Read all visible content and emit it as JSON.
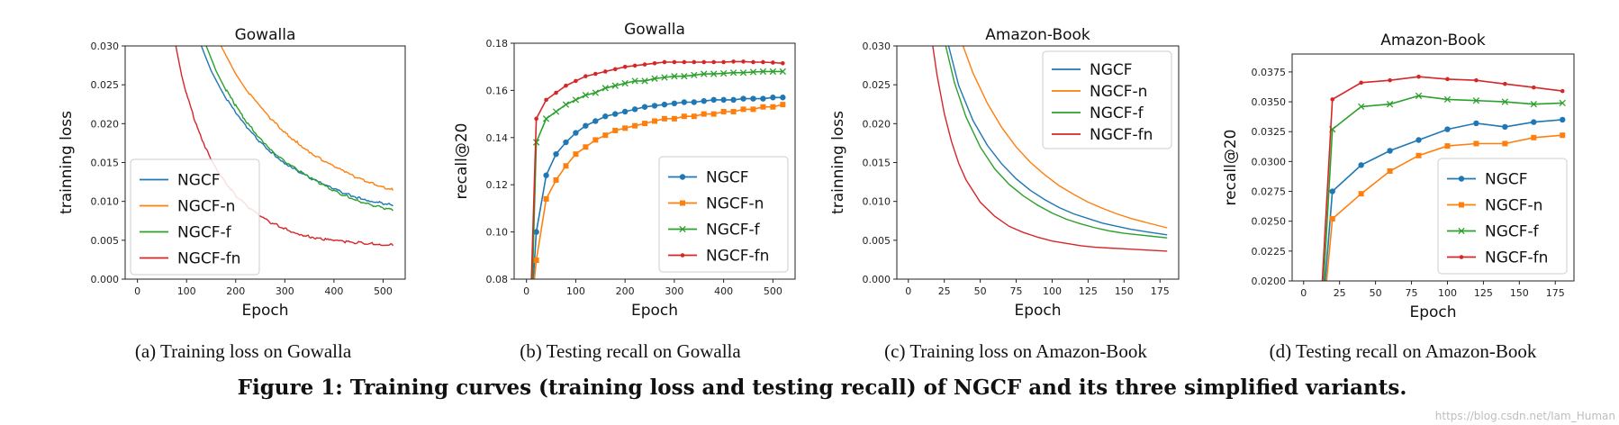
{
  "figure_caption": "Figure 1: Training curves (training loss and testing recall) of NGCF and its three simplified variants.",
  "watermark": "https://blog.csdn.net/Iam_Human",
  "colors": {
    "NGCF": "#1f77b4",
    "NGCF-n": "#ff7f0e",
    "NGCF-f": "#2ca02c",
    "NGCF-fn": "#d62728"
  },
  "chart_data": [
    {
      "type": "line",
      "title": "Gowalla",
      "caption": "(a)  Training loss on Gowalla",
      "xlabel": "Epoch",
      "ylabel": "trainning loss",
      "xlim": [
        -25,
        545
      ],
      "ylim": [
        0.0,
        0.03
      ],
      "xticks": [
        0,
        100,
        200,
        300,
        400,
        500
      ],
      "xtick_labels": [
        "0",
        "100",
        "200",
        "300",
        "400",
        "500"
      ],
      "yticks": [
        0.0,
        0.005,
        0.01,
        0.015,
        0.02,
        0.025,
        0.03
      ],
      "ytick_labels": [
        "0.000",
        "0.005",
        "0.010",
        "0.015",
        "0.020",
        "0.025",
        "0.030"
      ],
      "legend_loc": "lower-left",
      "series": [
        {
          "name": "NGCF",
          "x": [
            130,
            150,
            175,
            200,
            225,
            250,
            275,
            300,
            325,
            350,
            375,
            400,
            425,
            450,
            475,
            500,
            520
          ],
          "y": [
            0.03,
            0.0268,
            0.0238,
            0.0213,
            0.0192,
            0.0175,
            0.0161,
            0.0149,
            0.0139,
            0.013,
            0.0122,
            0.0115,
            0.0109,
            0.0104,
            0.01,
            0.0097,
            0.0094
          ]
        },
        {
          "name": "NGCF-n",
          "x": [
            170,
            200,
            225,
            250,
            275,
            300,
            325,
            350,
            375,
            400,
            425,
            450,
            475,
            500,
            520
          ],
          "y": [
            0.03,
            0.0264,
            0.024,
            0.022,
            0.0203,
            0.0188,
            0.0175,
            0.0163,
            0.0153,
            0.0144,
            0.0136,
            0.0129,
            0.0123,
            0.0118,
            0.0114
          ]
        },
        {
          "name": "NGCF-f",
          "x": [
            140,
            160,
            180,
            200,
            225,
            250,
            275,
            300,
            325,
            350,
            375,
            400,
            425,
            450,
            475,
            500,
            520
          ],
          "y": [
            0.03,
            0.0268,
            0.0243,
            0.0222,
            0.0199,
            0.018,
            0.0164,
            0.0151,
            0.014,
            0.013,
            0.0121,
            0.0113,
            0.0106,
            0.01,
            0.0095,
            0.0091,
            0.0088
          ]
        },
        {
          "name": "NGCF-fn",
          "x": [
            78,
            90,
            100,
            120,
            140,
            160,
            180,
            200,
            225,
            250,
            275,
            300,
            325,
            350,
            375,
            400,
            425,
            450,
            475,
            500,
            520
          ],
          "y": [
            0.03,
            0.0262,
            0.0237,
            0.0197,
            0.0166,
            0.0142,
            0.0123,
            0.0107,
            0.0092,
            0.008,
            0.0071,
            0.0064,
            0.0058,
            0.0054,
            0.0051,
            0.0049,
            0.0047,
            0.0046,
            0.0045,
            0.0044,
            0.0043
          ]
        }
      ]
    },
    {
      "type": "line",
      "title": "Gowalla",
      "caption": "(b)  Testing recall on Gowalla",
      "xlabel": "Epoch",
      "ylabel": "recall@20",
      "xlim": [
        -25,
        545
      ],
      "ylim": [
        0.08,
        0.18
      ],
      "xticks": [
        0,
        100,
        200,
        300,
        400,
        500
      ],
      "xtick_labels": [
        "0",
        "100",
        "200",
        "300",
        "400",
        "500"
      ],
      "yticks": [
        0.08,
        0.1,
        0.12,
        0.14,
        0.16,
        0.18
      ],
      "ytick_labels": [
        "0.08",
        "0.10",
        "0.12",
        "0.14",
        "0.16",
        "0.18"
      ],
      "legend_loc": "lower-right",
      "series": [
        {
          "name": "NGCF",
          "marker": "circle",
          "x": [
            14,
            20,
            40,
            60,
            80,
            100,
            120,
            140,
            160,
            180,
            200,
            220,
            240,
            260,
            280,
            300,
            320,
            340,
            360,
            380,
            400,
            420,
            440,
            460,
            480,
            500,
            520
          ],
          "y": [
            0.08,
            0.1,
            0.124,
            0.133,
            0.138,
            0.142,
            0.145,
            0.147,
            0.149,
            0.15,
            0.151,
            0.152,
            0.153,
            0.1535,
            0.154,
            0.1545,
            0.155,
            0.155,
            0.1555,
            0.156,
            0.156,
            0.156,
            0.1565,
            0.1565,
            0.1565,
            0.157,
            0.157
          ]
        },
        {
          "name": "NGCF-n",
          "marker": "square",
          "x": [
            16,
            20,
            40,
            60,
            80,
            100,
            120,
            140,
            160,
            180,
            200,
            220,
            240,
            260,
            280,
            300,
            320,
            340,
            360,
            380,
            400,
            420,
            440,
            460,
            480,
            500,
            520
          ],
          "y": [
            0.08,
            0.088,
            0.114,
            0.122,
            0.128,
            0.133,
            0.136,
            0.139,
            0.141,
            0.143,
            0.144,
            0.145,
            0.146,
            0.147,
            0.148,
            0.148,
            0.149,
            0.149,
            0.15,
            0.15,
            0.151,
            0.151,
            0.152,
            0.152,
            0.153,
            0.153,
            0.154
          ]
        },
        {
          "name": "NGCF-f",
          "marker": "x",
          "x": [
            12,
            20,
            40,
            60,
            80,
            100,
            120,
            140,
            160,
            180,
            200,
            220,
            240,
            260,
            280,
            300,
            320,
            340,
            360,
            380,
            400,
            420,
            440,
            460,
            480,
            500,
            520
          ],
          "y": [
            0.08,
            0.138,
            0.148,
            0.151,
            0.154,
            0.156,
            0.158,
            0.159,
            0.161,
            0.162,
            0.163,
            0.164,
            0.164,
            0.165,
            0.1655,
            0.166,
            0.166,
            0.1665,
            0.167,
            0.167,
            0.1672,
            0.1675,
            0.1675,
            0.1678,
            0.168,
            0.168,
            0.168
          ]
        },
        {
          "name": "NGCF-fn",
          "marker": "dot",
          "x": [
            10,
            20,
            40,
            60,
            80,
            100,
            120,
            140,
            160,
            180,
            200,
            220,
            240,
            260,
            280,
            300,
            320,
            340,
            360,
            380,
            400,
            420,
            440,
            460,
            480,
            500,
            520
          ],
          "y": [
            0.08,
            0.148,
            0.156,
            0.159,
            0.162,
            0.164,
            0.166,
            0.167,
            0.168,
            0.169,
            0.17,
            0.1705,
            0.171,
            0.1715,
            0.172,
            0.172,
            0.172,
            0.172,
            0.172,
            0.172,
            0.172,
            0.1722,
            0.1722,
            0.172,
            0.172,
            0.1718,
            0.1715
          ]
        }
      ]
    },
    {
      "type": "line",
      "title": "Amazon-Book",
      "caption": "(c)  Training loss on Amazon-Book",
      "xlabel": "Epoch",
      "ylabel": "trainning loss",
      "xlim": [
        -8,
        188
      ],
      "ylim": [
        0.0,
        0.03
      ],
      "xticks": [
        0,
        25,
        50,
        75,
        100,
        125,
        150,
        175
      ],
      "xtick_labels": [
        "0",
        "25",
        "50",
        "75",
        "100",
        "125",
        "150",
        "175"
      ],
      "yticks": [
        0.0,
        0.005,
        0.01,
        0.015,
        0.02,
        0.025,
        0.03
      ],
      "ytick_labels": [
        "0.000",
        "0.005",
        "0.010",
        "0.015",
        "0.020",
        "0.025",
        "0.030"
      ],
      "legend_loc": "top-right",
      "series": [
        {
          "name": "NGCF",
          "x": [
            28,
            35,
            45,
            55,
            65,
            75,
            85,
            95,
            105,
            115,
            125,
            135,
            145,
            155,
            165,
            180
          ],
          "y": [
            0.03,
            0.0249,
            0.0204,
            0.0172,
            0.0148,
            0.0129,
            0.0114,
            0.0102,
            0.0092,
            0.0084,
            0.0078,
            0.0072,
            0.0068,
            0.0064,
            0.0061,
            0.0057
          ]
        },
        {
          "name": "NGCF-n",
          "x": [
            38,
            45,
            55,
            65,
            75,
            85,
            95,
            105,
            115,
            125,
            135,
            145,
            155,
            165,
            180
          ],
          "y": [
            0.03,
            0.0265,
            0.0226,
            0.0195,
            0.017,
            0.015,
            0.0134,
            0.012,
            0.0109,
            0.0099,
            0.0091,
            0.0084,
            0.0078,
            0.0073,
            0.0066
          ]
        },
        {
          "name": "NGCF-f",
          "x": [
            26,
            32,
            40,
            50,
            60,
            70,
            80,
            90,
            100,
            110,
            120,
            130,
            140,
            150,
            160,
            170,
            180
          ],
          "y": [
            0.03,
            0.0253,
            0.0209,
            0.017,
            0.0142,
            0.0122,
            0.0107,
            0.0095,
            0.0085,
            0.0077,
            0.0071,
            0.0066,
            0.0062,
            0.0059,
            0.0057,
            0.0055,
            0.0053
          ]
        },
        {
          "name": "NGCF-fn",
          "x": [
            17,
            20,
            25,
            30,
            35,
            40,
            50,
            60,
            70,
            80,
            90,
            100,
            110,
            120,
            130,
            140,
            150,
            160,
            170,
            180
          ],
          "y": [
            0.03,
            0.0262,
            0.0213,
            0.0177,
            0.0149,
            0.0128,
            0.0099,
            0.0081,
            0.0068,
            0.006,
            0.0054,
            0.0049,
            0.0046,
            0.0043,
            0.0041,
            0.004,
            0.0039,
            0.0038,
            0.0037,
            0.0036
          ]
        }
      ]
    },
    {
      "type": "line",
      "title": "Amazon-Book",
      "caption": "(d)  Testing recall on Amazon-Book",
      "xlabel": "Epoch",
      "ylabel": "recall@20",
      "xlim": [
        -8,
        188
      ],
      "ylim": [
        0.02,
        0.039
      ],
      "xticks": [
        0,
        25,
        50,
        75,
        100,
        125,
        150,
        175
      ],
      "xtick_labels": [
        "0",
        "25",
        "50",
        "75",
        "100",
        "125",
        "150",
        "175"
      ],
      "yticks": [
        0.02,
        0.0225,
        0.025,
        0.0275,
        0.03,
        0.0325,
        0.035,
        0.0375
      ],
      "ytick_labels": [
        "0.0200",
        "0.0225",
        "0.0250",
        "0.0275",
        "0.0300",
        "0.0325",
        "0.0350",
        "0.0375"
      ],
      "legend_loc": "lower-right",
      "series": [
        {
          "name": "NGCF",
          "marker": "circle",
          "x": [
            15,
            20,
            40,
            60,
            80,
            100,
            120,
            140,
            160,
            180
          ],
          "y": [
            0.02,
            0.0275,
            0.0297,
            0.0309,
            0.0318,
            0.0327,
            0.0332,
            0.0329,
            0.0333,
            0.0335
          ]
        },
        {
          "name": "NGCF-n",
          "marker": "square",
          "x": [
            16,
            20,
            40,
            60,
            80,
            100,
            120,
            140,
            160,
            180
          ],
          "y": [
            0.02,
            0.0252,
            0.0273,
            0.0292,
            0.0305,
            0.0313,
            0.0315,
            0.0315,
            0.032,
            0.0322
          ]
        },
        {
          "name": "NGCF-f",
          "marker": "x",
          "x": [
            14,
            20,
            40,
            60,
            80,
            100,
            120,
            140,
            160,
            180
          ],
          "y": [
            0.02,
            0.0327,
            0.0346,
            0.0348,
            0.0355,
            0.0352,
            0.0351,
            0.035,
            0.0348,
            0.0349
          ]
        },
        {
          "name": "NGCF-fn",
          "marker": "dot",
          "x": [
            13,
            20,
            40,
            60,
            80,
            100,
            120,
            140,
            160,
            180
          ],
          "y": [
            0.02,
            0.0352,
            0.0366,
            0.0368,
            0.0371,
            0.0369,
            0.0368,
            0.0365,
            0.0362,
            0.0359
          ]
        }
      ]
    }
  ]
}
